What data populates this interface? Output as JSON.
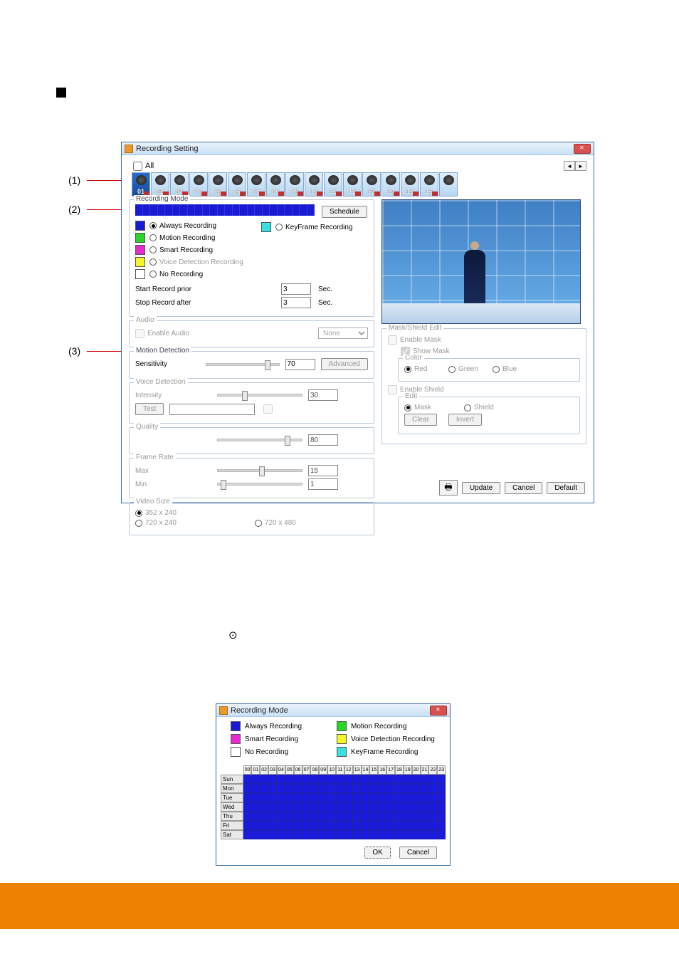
{
  "annotations": {
    "a1": "(1)",
    "a2": "(2)",
    "a3": "(3)"
  },
  "main": {
    "title": "Recording Setting",
    "all": "All",
    "cameras": [
      "01",
      "02",
      "03",
      "04",
      "05",
      "06",
      "07",
      "08",
      "09",
      "10",
      "11",
      "12",
      "13",
      "14",
      "15",
      "16"
    ],
    "recordingMode": {
      "legend": "Recording Mode",
      "scheduleBtn": "Schedule",
      "modes": {
        "always": {
          "label": "Always Recording",
          "color": "#1a1ad0",
          "selected": true
        },
        "motion": {
          "label": "Motion Recording",
          "color": "#28d628",
          "selected": false
        },
        "smart": {
          "label": "Smart Recording",
          "color": "#e828d0",
          "selected": false
        },
        "voice": {
          "label": "Voice Detection Recording",
          "color": "#f5f528",
          "selected": false,
          "disabled": true
        },
        "none": {
          "label": "No Recording",
          "color": "#ffffff",
          "selected": false
        },
        "keyframe": {
          "label": "KeyFrame Recording",
          "color": "#38e0e0",
          "selected": false
        }
      },
      "startPriorLabel": "Start Record prior",
      "startPrior": "3",
      "stopAfterLabel": "Stop Record after",
      "stopAfter": "3",
      "sec": "Sec."
    },
    "audio": {
      "legend": "Audio",
      "enable": "Enable Audio",
      "source": "None"
    },
    "motion": {
      "legend": "Motion Detection",
      "sensLabel": "Sensitivity",
      "sensValue": "70",
      "advBtn": "Advanced"
    },
    "voice": {
      "legend": "Voice Detection",
      "intensityLabel": "Intensity",
      "intensityValue": "30",
      "testBtn": "Test"
    },
    "quality": {
      "legend": "Quality",
      "value": "80"
    },
    "frameRate": {
      "legend": "Frame Rate",
      "maxLabel": "Max",
      "maxValue": "15",
      "minLabel": "Min",
      "minValue": "1"
    },
    "videoSize": {
      "legend": "Video Size",
      "opt1": "352 x 240",
      "opt2": "720 x 240",
      "opt3": "720 x 480"
    },
    "mask": {
      "legend": "Mask/Shield Edit",
      "enableMask": "Enable Mask",
      "showMask": "Show Mask",
      "colorLegend": "Color",
      "red": "Red",
      "green": "Green",
      "blue": "Blue",
      "enableShield": "Enable Shield",
      "editLegend": "Edit",
      "maskOpt": "Mask",
      "shieldOpt": "Shield",
      "clearBtn": "Clear",
      "invertBtn": "Invert"
    },
    "buttons": {
      "update": "Update",
      "cancel": "Cancel",
      "default": "Default"
    }
  },
  "rm": {
    "title": "Recording Mode",
    "legend": {
      "always": {
        "label": "Always Recording",
        "color": "#1a1ad0"
      },
      "motion": {
        "label": "Motion Recording",
        "color": "#28d628"
      },
      "smart": {
        "label": "Smart Recording",
        "color": "#e828d0"
      },
      "voice": {
        "label": "Voice Detection Recording",
        "color": "#f5f528"
      },
      "none": {
        "label": "No Recording",
        "color": "#ffffff"
      },
      "keyframe": {
        "label": "KeyFrame Recording",
        "color": "#38e0e0"
      }
    },
    "hours": [
      "00",
      "01",
      "02",
      "03",
      "04",
      "05",
      "06",
      "07",
      "08",
      "09",
      "10",
      "11",
      "12",
      "13",
      "14",
      "15",
      "16",
      "17",
      "18",
      "19",
      "20",
      "21",
      "22",
      "23"
    ],
    "days": [
      "Sun",
      "Mon",
      "Tue",
      "Wed",
      "Thu",
      "Fri",
      "Sat"
    ],
    "ok": "OK",
    "cancel": "Cancel"
  }
}
